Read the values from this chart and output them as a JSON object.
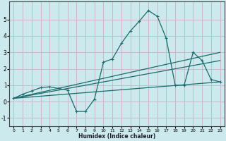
{
  "xlabel": "Humidex (Indice chaleur)",
  "background_color": "#cce9ed",
  "grid_color": "#c8b8cc",
  "line_color": "#1a6b6b",
  "xlim": [
    -0.5,
    23.5
  ],
  "ylim": [
    -1.5,
    6.1
  ],
  "xticks": [
    0,
    1,
    2,
    3,
    4,
    5,
    6,
    7,
    8,
    9,
    10,
    11,
    12,
    13,
    14,
    15,
    16,
    17,
    18,
    19,
    20,
    21,
    22,
    23
  ],
  "yticks": [
    -1,
    0,
    1,
    2,
    3,
    4,
    5
  ],
  "line1_x": [
    0,
    1,
    2,
    3,
    4,
    5,
    6,
    7,
    8,
    9,
    10,
    11,
    12,
    13,
    14,
    15,
    16,
    17,
    18,
    19,
    20,
    21,
    22,
    23
  ],
  "line1_y": [
    0.2,
    0.45,
    0.65,
    0.85,
    0.9,
    0.8,
    0.7,
    -0.6,
    -0.6,
    0.15,
    2.4,
    2.6,
    3.55,
    4.3,
    4.9,
    5.55,
    5.2,
    3.85,
    1.0,
    1.0,
    3.0,
    2.5,
    1.35,
    1.2
  ],
  "line2_x": [
    0,
    23
  ],
  "line2_y": [
    0.2,
    3.0
  ],
  "line3_x": [
    0,
    23
  ],
  "line3_y": [
    0.2,
    2.5
  ],
  "line4_x": [
    0,
    23
  ],
  "line4_y": [
    0.2,
    1.2
  ]
}
